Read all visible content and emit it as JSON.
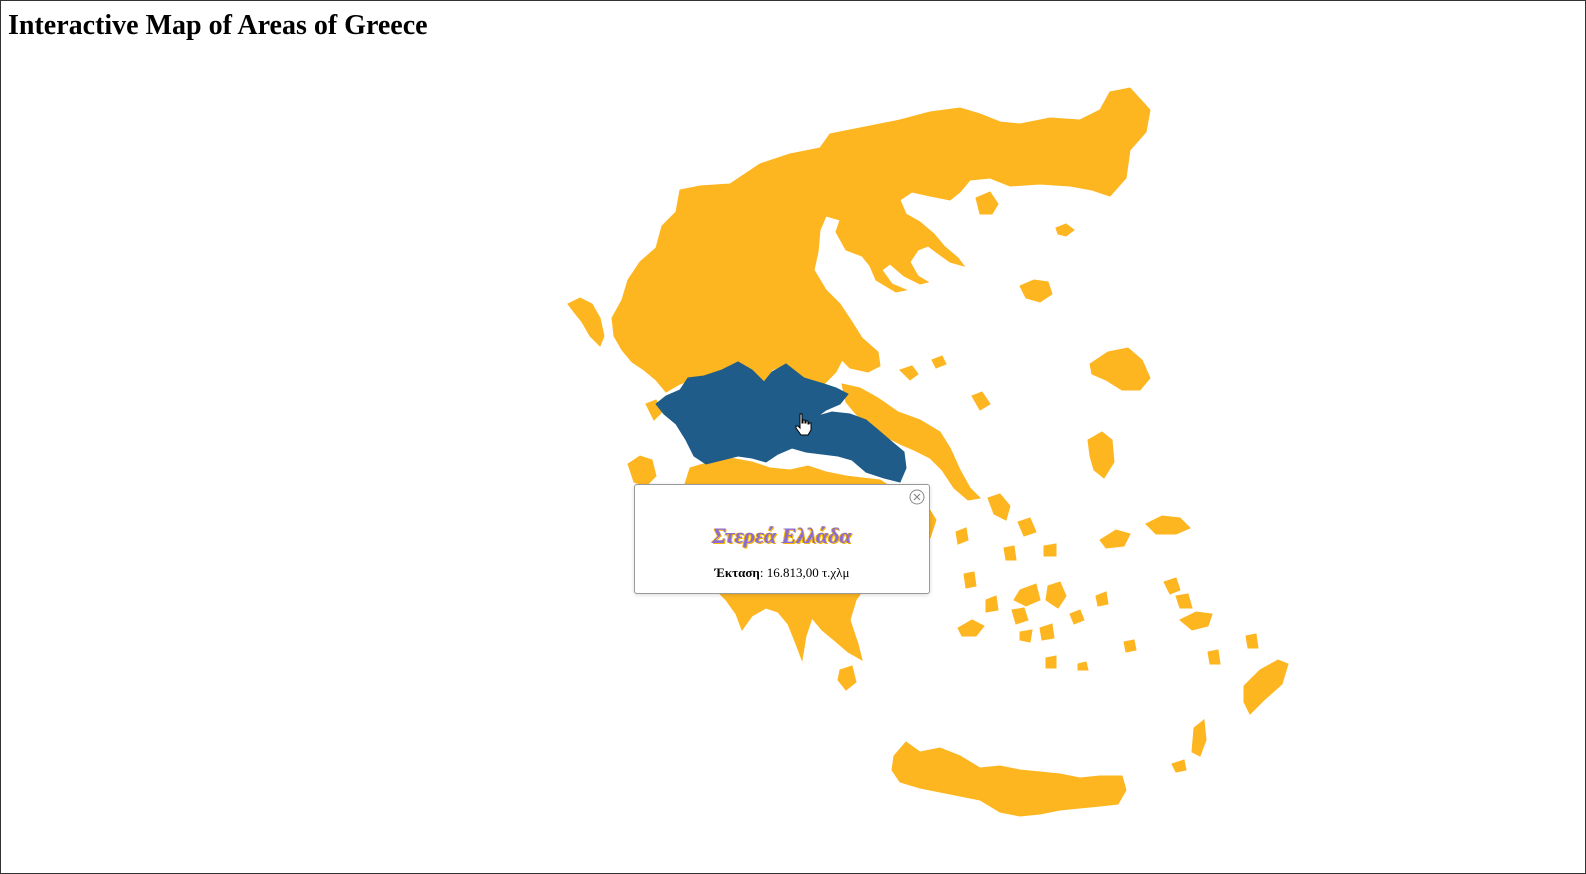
{
  "page": {
    "title": "Interactive Map of Areas of Greece"
  },
  "map": {
    "colors": {
      "region": "#fdb520",
      "selected": "#1f5c8a",
      "background": "#ffffff"
    },
    "selected_region": "Στερεά Ελλάδα"
  },
  "popup": {
    "region_name": "Στερεά Ελλάδα",
    "area_label": "Έκταση",
    "area_value": ": 16.813,00 τ.χλμ",
    "close_icon": "close-circle-icon"
  }
}
